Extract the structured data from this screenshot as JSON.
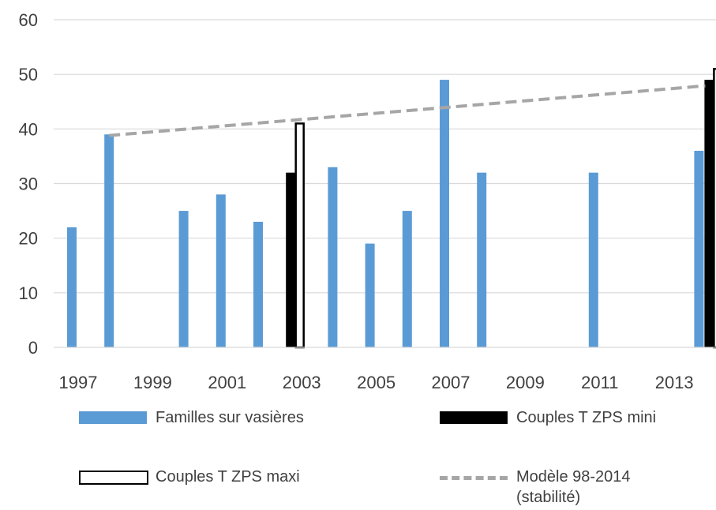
{
  "chart_data": {
    "type": "bar",
    "years": [
      1997,
      1998,
      1999,
      2000,
      2001,
      2002,
      2003,
      2004,
      2005,
      2006,
      2007,
      2008,
      2009,
      2010,
      2011,
      2012,
      2013,
      2014
    ],
    "x_tick_labels": [
      "1997",
      "1999",
      "2001",
      "2003",
      "2005",
      "2007",
      "2009",
      "2011",
      "2013"
    ],
    "y_ticks": [
      "0",
      "10",
      "20",
      "30",
      "40",
      "50",
      "60"
    ],
    "ylim": [
      0,
      60
    ],
    "grid": true,
    "legend_position": "bottom",
    "series": [
      {
        "name": "Familles sur vasières",
        "kind": "bar",
        "color": "#5b9bd5",
        "values": [
          22,
          39,
          null,
          25,
          28,
          23,
          null,
          33,
          19,
          25,
          49,
          32,
          null,
          null,
          32,
          null,
          null,
          36
        ]
      },
      {
        "name": "Couples T ZPS mini",
        "kind": "bar",
        "color": "#000000",
        "values": [
          null,
          null,
          null,
          null,
          null,
          null,
          32,
          null,
          null,
          null,
          null,
          null,
          null,
          null,
          null,
          null,
          null,
          49
        ]
      },
      {
        "name": "Couples T ZPS maxi",
        "kind": "bar-outline",
        "color": "#000000",
        "values": [
          null,
          null,
          null,
          null,
          null,
          null,
          41,
          null,
          null,
          null,
          null,
          null,
          null,
          null,
          null,
          null,
          null,
          51
        ]
      },
      {
        "name": "Modèle 98-2014\n(stabilité)",
        "kind": "dashed-line",
        "color": "#a6a6a6",
        "from": {
          "x": 1998,
          "y": 38.8
        },
        "to": {
          "x": 2014,
          "y": 47.9
        }
      }
    ]
  },
  "legend": {
    "families": "Familles sur vasières",
    "mini": "Couples T ZPS mini",
    "maxi": "Couples T ZPS maxi",
    "model_line1": "Modèle 98-2014",
    "model_line2": "(stabilité)"
  }
}
